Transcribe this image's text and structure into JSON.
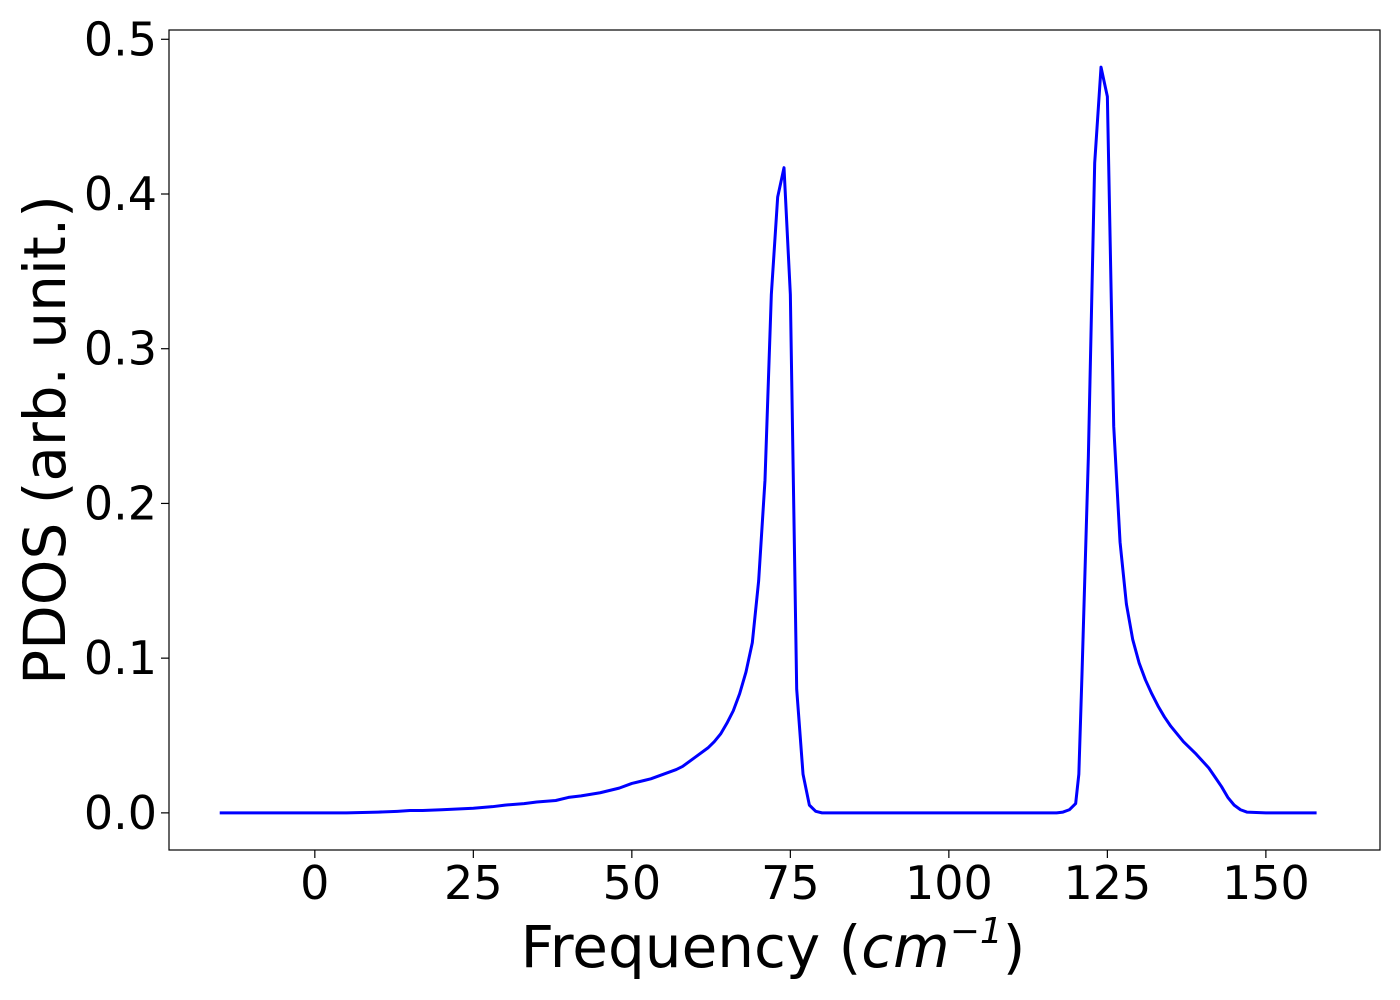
{
  "chart_data": {
    "type": "line",
    "xlabel_main": "Frequency (",
    "xlabel_unit": "cm",
    "xlabel_exp": "−1",
    "xlabel_close": ")",
    "ylabel": "PDOS (arb. unit.)",
    "xlim": [
      -23,
      168
    ],
    "ylim": [
      -0.024,
      0.506
    ],
    "xticks": [
      0,
      25,
      50,
      75,
      100,
      125,
      150
    ],
    "xtick_labels": [
      "0",
      "25",
      "50",
      "75",
      "100",
      "125",
      "150"
    ],
    "yticks": [
      0.0,
      0.1,
      0.2,
      0.3,
      0.4,
      0.5
    ],
    "ytick_labels": [
      "0.0",
      "0.1",
      "0.2",
      "0.3",
      "0.4",
      "0.5"
    ],
    "grid": false,
    "series": [
      {
        "color": "#0000ff",
        "x": [
          -15,
          -10,
          -5,
          0,
          5,
          10,
          13,
          15,
          17,
          20,
          25,
          28,
          30,
          33,
          35,
          38,
          40,
          42,
          45,
          48,
          50,
          52,
          53,
          55,
          57,
          58,
          60,
          62,
          63,
          64,
          65,
          66,
          67,
          68,
          69,
          70,
          71,
          72,
          73,
          74,
          75,
          76,
          77,
          78,
          79,
          80,
          82,
          85,
          90,
          100,
          110,
          117,
          118,
          119,
          120,
          120.5,
          121,
          122,
          123,
          124,
          125,
          126,
          127,
          128,
          129,
          130,
          131,
          132,
          133,
          134,
          135,
          137,
          139,
          141,
          142,
          143,
          144,
          145,
          146,
          147,
          150,
          155,
          158
        ],
        "y": [
          0.0,
          0.0,
          0.0,
          0.0,
          0.0,
          0.0005,
          0.001,
          0.0015,
          0.0015,
          0.002,
          0.003,
          0.004,
          0.005,
          0.006,
          0.007,
          0.008,
          0.01,
          0.011,
          0.013,
          0.016,
          0.019,
          0.021,
          0.022,
          0.025,
          0.028,
          0.03,
          0.036,
          0.042,
          0.046,
          0.051,
          0.058,
          0.066,
          0.077,
          0.091,
          0.11,
          0.15,
          0.215,
          0.335,
          0.398,
          0.417,
          0.335,
          0.08,
          0.025,
          0.005,
          0.001,
          0.0,
          0.0,
          0.0,
          0.0,
          0.0,
          0.0,
          0.0,
          0.0005,
          0.002,
          0.006,
          0.025,
          0.09,
          0.23,
          0.42,
          0.482,
          0.463,
          0.25,
          0.175,
          0.135,
          0.112,
          0.097,
          0.086,
          0.077,
          0.069,
          0.062,
          0.056,
          0.046,
          0.038,
          0.029,
          0.023,
          0.017,
          0.01,
          0.005,
          0.002,
          0.0005,
          0.0,
          0.0,
          0.0
        ]
      }
    ]
  }
}
